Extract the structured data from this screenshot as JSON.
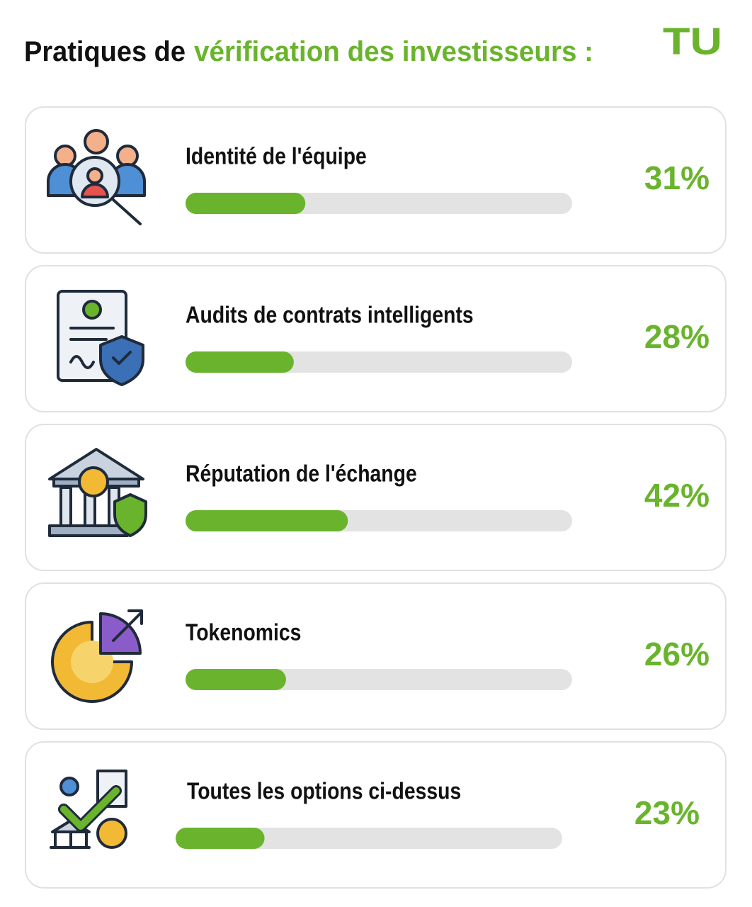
{
  "title": {
    "lead": "Pratiques de",
    "highlight": "vérification des investisseurs :"
  },
  "logo": "TU",
  "chart_data": {
    "type": "bar",
    "orientation": "horizontal",
    "categories": [
      "Identité de l'équipe",
      "Audits de contrats intelligents",
      "Réputation de l'échange",
      "Tokenomics",
      "Toutes les options ci-dessus"
    ],
    "values": [
      31,
      28,
      42,
      26,
      23
    ],
    "value_labels": [
      "31%",
      "28%",
      "42%",
      "26%",
      "23%"
    ],
    "color": "#6ab42d",
    "track_color": "#e3e3e3",
    "xlim": [
      0,
      100
    ]
  }
}
